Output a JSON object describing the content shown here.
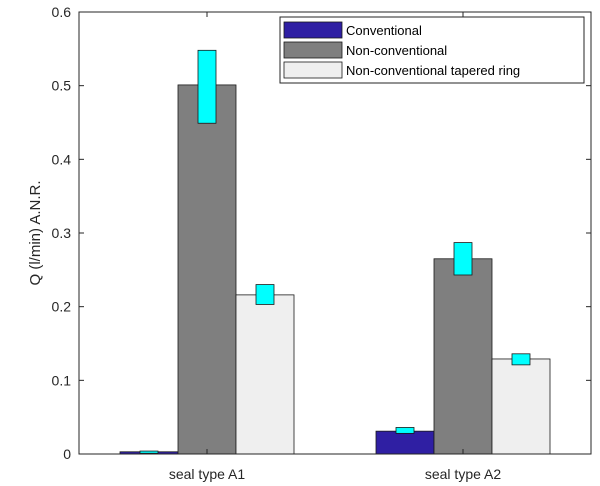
{
  "chart_data": {
    "type": "bar",
    "title": "",
    "xlabel": "",
    "ylabel": "Q (l/min) A.N.R.",
    "ylim": [
      0,
      0.6
    ],
    "yticks": [
      "0",
      "0.1",
      "0.2",
      "0.3",
      "0.4",
      "0.5",
      "0.6"
    ],
    "grid": false,
    "legend_position": "top-right",
    "categories": [
      "seal type A1",
      "seal type A2"
    ],
    "series": [
      {
        "name": "Conventional",
        "color": "#2f1fa3",
        "values": [
          0.003,
          0.031
        ],
        "error_low": [
          0.001,
          0.028
        ],
        "error_high": [
          0.004,
          0.036
        ]
      },
      {
        "name": "Non-conventional",
        "color": "#7f7f7f",
        "values": [
          0.501,
          0.265
        ],
        "error_low": [
          0.449,
          0.243
        ],
        "error_high": [
          0.548,
          0.287
        ]
      },
      {
        "name": "Non-conventional tapered ring",
        "color": "#efefef",
        "values": [
          0.216,
          0.129
        ],
        "error_low": [
          0.203,
          0.121
        ],
        "error_high": [
          0.23,
          0.136
        ]
      }
    ],
    "error_box_color": "#00ffff"
  }
}
